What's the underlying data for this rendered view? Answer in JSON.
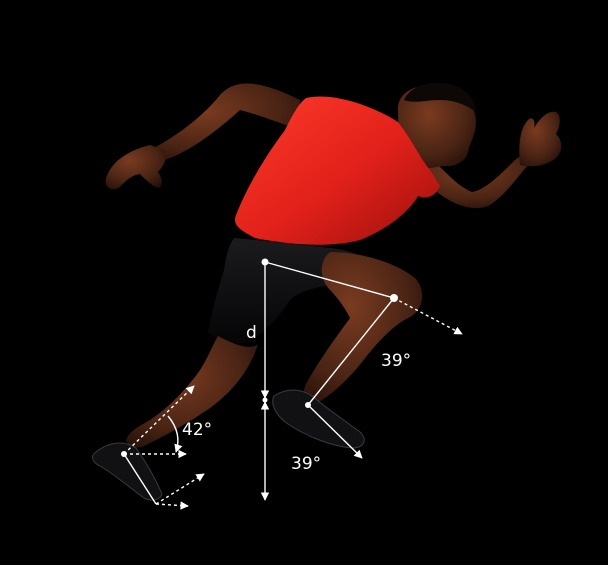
{
  "scene": {
    "description_colors": {
      "background": "#000000",
      "shirt": "#e8241c",
      "skin": "#4a2414",
      "shorts": "#0d0d0f",
      "annotation": "#ffffff"
    }
  },
  "annotations": {
    "distance_label": "d",
    "knee_angle_label": "39°",
    "ankle_angle_label": "42°",
    "foot_angle_label": "39°"
  }
}
